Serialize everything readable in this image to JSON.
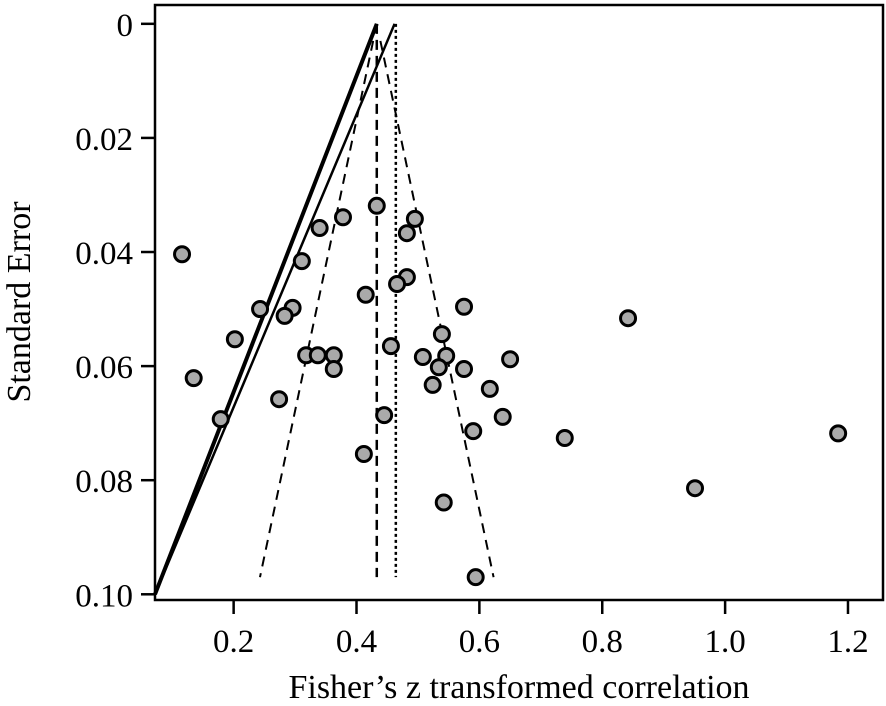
{
  "chart_data": {
    "type": "scatter",
    "title": "",
    "xlabel": "Fisher’s z transformed correlation",
    "ylabel": "Standard Error",
    "xlim": [
      0.072,
      1.257
    ],
    "ylim": [
      -0.0033,
      0.101
    ],
    "y_inverted": true,
    "xticks": [
      0.2,
      0.4,
      0.6,
      0.8,
      1.0,
      1.2
    ],
    "xtick_labels": [
      "0.2",
      "0.4",
      "0.6",
      "0.8",
      "1.0",
      "1.2"
    ],
    "yticks": [
      0,
      0.02,
      0.04,
      0.06,
      0.08,
      0.1
    ],
    "ytick_labels": [
      "0",
      "0.02",
      "0.04",
      "0.06",
      "0.08",
      "0.10"
    ],
    "grid": false,
    "point_color": "#aaaaaa",
    "points": [
      [
        0.116,
        0.0404
      ],
      [
        0.34,
        0.0358
      ],
      [
        0.378,
        0.0339
      ],
      [
        0.311,
        0.0416
      ],
      [
        0.433,
        0.0319
      ],
      [
        0.243,
        0.05
      ],
      [
        0.296,
        0.0498
      ],
      [
        0.283,
        0.0512
      ],
      [
        0.202,
        0.0553
      ],
      [
        0.415,
        0.0475
      ],
      [
        0.482,
        0.0367
      ],
      [
        0.495,
        0.0342
      ],
      [
        0.482,
        0.0444
      ],
      [
        0.466,
        0.0456
      ],
      [
        0.135,
        0.0621
      ],
      [
        0.318,
        0.0581
      ],
      [
        0.337,
        0.0581
      ],
      [
        0.363,
        0.0581
      ],
      [
        0.363,
        0.0605
      ],
      [
        0.456,
        0.0565
      ],
      [
        0.274,
        0.0658
      ],
      [
        0.179,
        0.0693
      ],
      [
        0.445,
        0.0686
      ],
      [
        0.412,
        0.0754
      ],
      [
        0.575,
        0.0496
      ],
      [
        0.842,
        0.0516
      ],
      [
        0.539,
        0.0544
      ],
      [
        0.508,
        0.0584
      ],
      [
        0.546,
        0.0582
      ],
      [
        0.534,
        0.0602
      ],
      [
        0.575,
        0.0605
      ],
      [
        0.524,
        0.0633
      ],
      [
        0.65,
        0.0588
      ],
      [
        0.617,
        0.064
      ],
      [
        0.638,
        0.0689
      ],
      [
        0.59,
        0.0714
      ],
      [
        0.739,
        0.0726
      ],
      [
        0.542,
        0.0839
      ],
      [
        0.594,
        0.097
      ],
      [
        0.951,
        0.0814
      ],
      [
        1.184,
        0.0718
      ]
    ],
    "pooled_effect_dashed": 0.433,
    "pooled_effect_dotted": 0.464,
    "funnel": {
      "center": 0.433,
      "z": 1.96,
      "se_range": [
        0.003,
        0.097
      ]
    },
    "regression_lines": [
      {
        "style": "thick",
        "from": [
          0.072,
          0.1
        ],
        "to": [
          0.433,
          0.0
        ]
      },
      {
        "style": "thin",
        "from": [
          0.072,
          0.1
        ],
        "to": [
          0.462,
          0.0
        ]
      }
    ]
  }
}
